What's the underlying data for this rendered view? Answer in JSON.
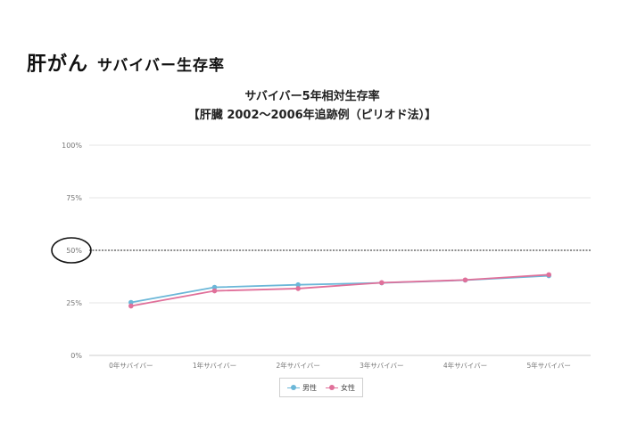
{
  "page": {
    "title": "肝がん",
    "subtitle": "サバイバー生存率"
  },
  "chart_data": {
    "type": "line",
    "title_line1": "サバイバー5年相対生存率",
    "title_line2": "【肝臓 2002～2006年追跡例（ピリオド法）】",
    "categories": [
      "0年サバイバー",
      "1年サバイバー",
      "2年サバイバー",
      "3年サバイバー",
      "4年サバイバー",
      "5年サバイバー"
    ],
    "y_ticks": [
      "0%",
      "25%",
      "50%",
      "75%",
      "100%"
    ],
    "ylim": [
      0,
      100
    ],
    "grid": true,
    "reference_line": {
      "value": 50,
      "style": "dotted",
      "highlighted_tick": "50%"
    },
    "series": [
      {
        "name": "男性",
        "color": "#6bb7d8",
        "values": [
          25.2,
          32.4,
          33.6,
          34.5,
          35.8,
          37.9
        ]
      },
      {
        "name": "女性",
        "color": "#e0709a",
        "values": [
          23.5,
          30.7,
          31.8,
          34.6,
          35.9,
          38.4
        ]
      }
    ],
    "legend_position": "bottom-center"
  }
}
